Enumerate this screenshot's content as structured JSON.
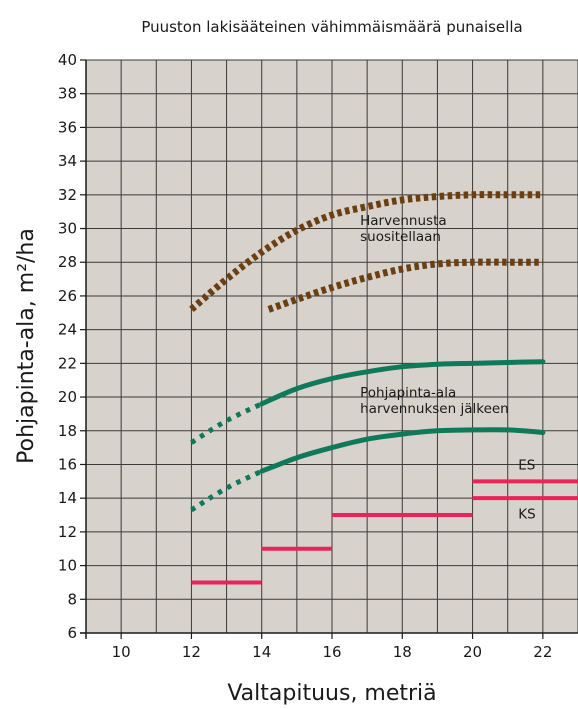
{
  "chart_data": {
    "type": "line",
    "title": "Puuston lakisääteinen vähimmäismäärä punaisella",
    "xlabel": "Valtapituus, metriä",
    "ylabel": "Pohjapinta-ala, m²/ha",
    "xlim": [
      9,
      23
    ],
    "ylim": [
      6,
      40
    ],
    "xticks": [
      10,
      12,
      14,
      16,
      18,
      20,
      22
    ],
    "yticks": [
      6,
      8,
      10,
      12,
      14,
      16,
      18,
      20,
      22,
      24,
      26,
      28,
      30,
      32,
      34,
      36,
      38,
      40
    ],
    "grid": true,
    "colors": {
      "thinning_recommended": "#6b3f12",
      "after_thinning": "#0f7a5a",
      "legal_minimum": "#e8245a",
      "plot_background": "#d7d2cb",
      "grid": "#3a3a3a"
    },
    "series": [
      {
        "group": "thinning_recommended",
        "style": "dotted",
        "x": [
          12,
          13,
          14,
          15,
          16,
          17,
          18,
          19,
          20,
          21,
          22
        ],
        "y": [
          25.2,
          27.0,
          28.6,
          29.9,
          30.8,
          31.3,
          31.7,
          31.9,
          32.0,
          32.0,
          32.0
        ]
      },
      {
        "group": "thinning_recommended",
        "style": "dotted",
        "x": [
          14.2,
          15,
          16,
          17,
          18,
          19,
          20,
          21,
          22
        ],
        "y": [
          25.2,
          25.8,
          26.5,
          27.1,
          27.6,
          27.9,
          28.0,
          28.0,
          28.0
        ]
      },
      {
        "group": "after_thinning",
        "style": "dotted",
        "x": [
          12,
          13,
          14
        ],
        "y": [
          17.3,
          18.6,
          19.6
        ]
      },
      {
        "group": "after_thinning",
        "style": "solid",
        "x": [
          14,
          15,
          16,
          17,
          18,
          19,
          20,
          21,
          22
        ],
        "y": [
          19.6,
          20.5,
          21.1,
          21.5,
          21.8,
          21.95,
          22.0,
          22.05,
          22.1
        ]
      },
      {
        "group": "after_thinning",
        "style": "dotted",
        "x": [
          12,
          13,
          14
        ],
        "y": [
          13.3,
          14.6,
          15.6
        ]
      },
      {
        "group": "after_thinning",
        "style": "solid",
        "x": [
          14,
          15,
          16,
          17,
          18,
          19,
          20,
          21,
          22
        ],
        "y": [
          15.6,
          16.4,
          17.0,
          17.5,
          17.8,
          18.0,
          18.05,
          18.05,
          17.9
        ]
      }
    ],
    "segments": [
      {
        "group": "legal_minimum",
        "x": [
          12,
          14
        ],
        "y": 9
      },
      {
        "group": "legal_minimum",
        "x": [
          14,
          16
        ],
        "y": 11
      },
      {
        "group": "legal_minimum",
        "x": [
          16,
          20
        ],
        "y": 13
      },
      {
        "group": "legal_minimum",
        "x": [
          20,
          23
        ],
        "y": 15,
        "label": "ES"
      },
      {
        "group": "legal_minimum",
        "x": [
          20,
          23
        ],
        "y": 14,
        "label": "KS"
      }
    ],
    "annotations": [
      {
        "text": [
          "Harvennusta",
          "suositellaan"
        ],
        "x": 16.8,
        "y": 30.2
      },
      {
        "text": [
          "Pohjapinta-ala",
          "harvennuksen jälkeen"
        ],
        "x": 16.8,
        "y": 20.0
      },
      {
        "text": [
          "ES"
        ],
        "x": 21.3,
        "y": 15.7
      },
      {
        "text": [
          "KS"
        ],
        "x": 21.3,
        "y": 12.8
      }
    ]
  }
}
